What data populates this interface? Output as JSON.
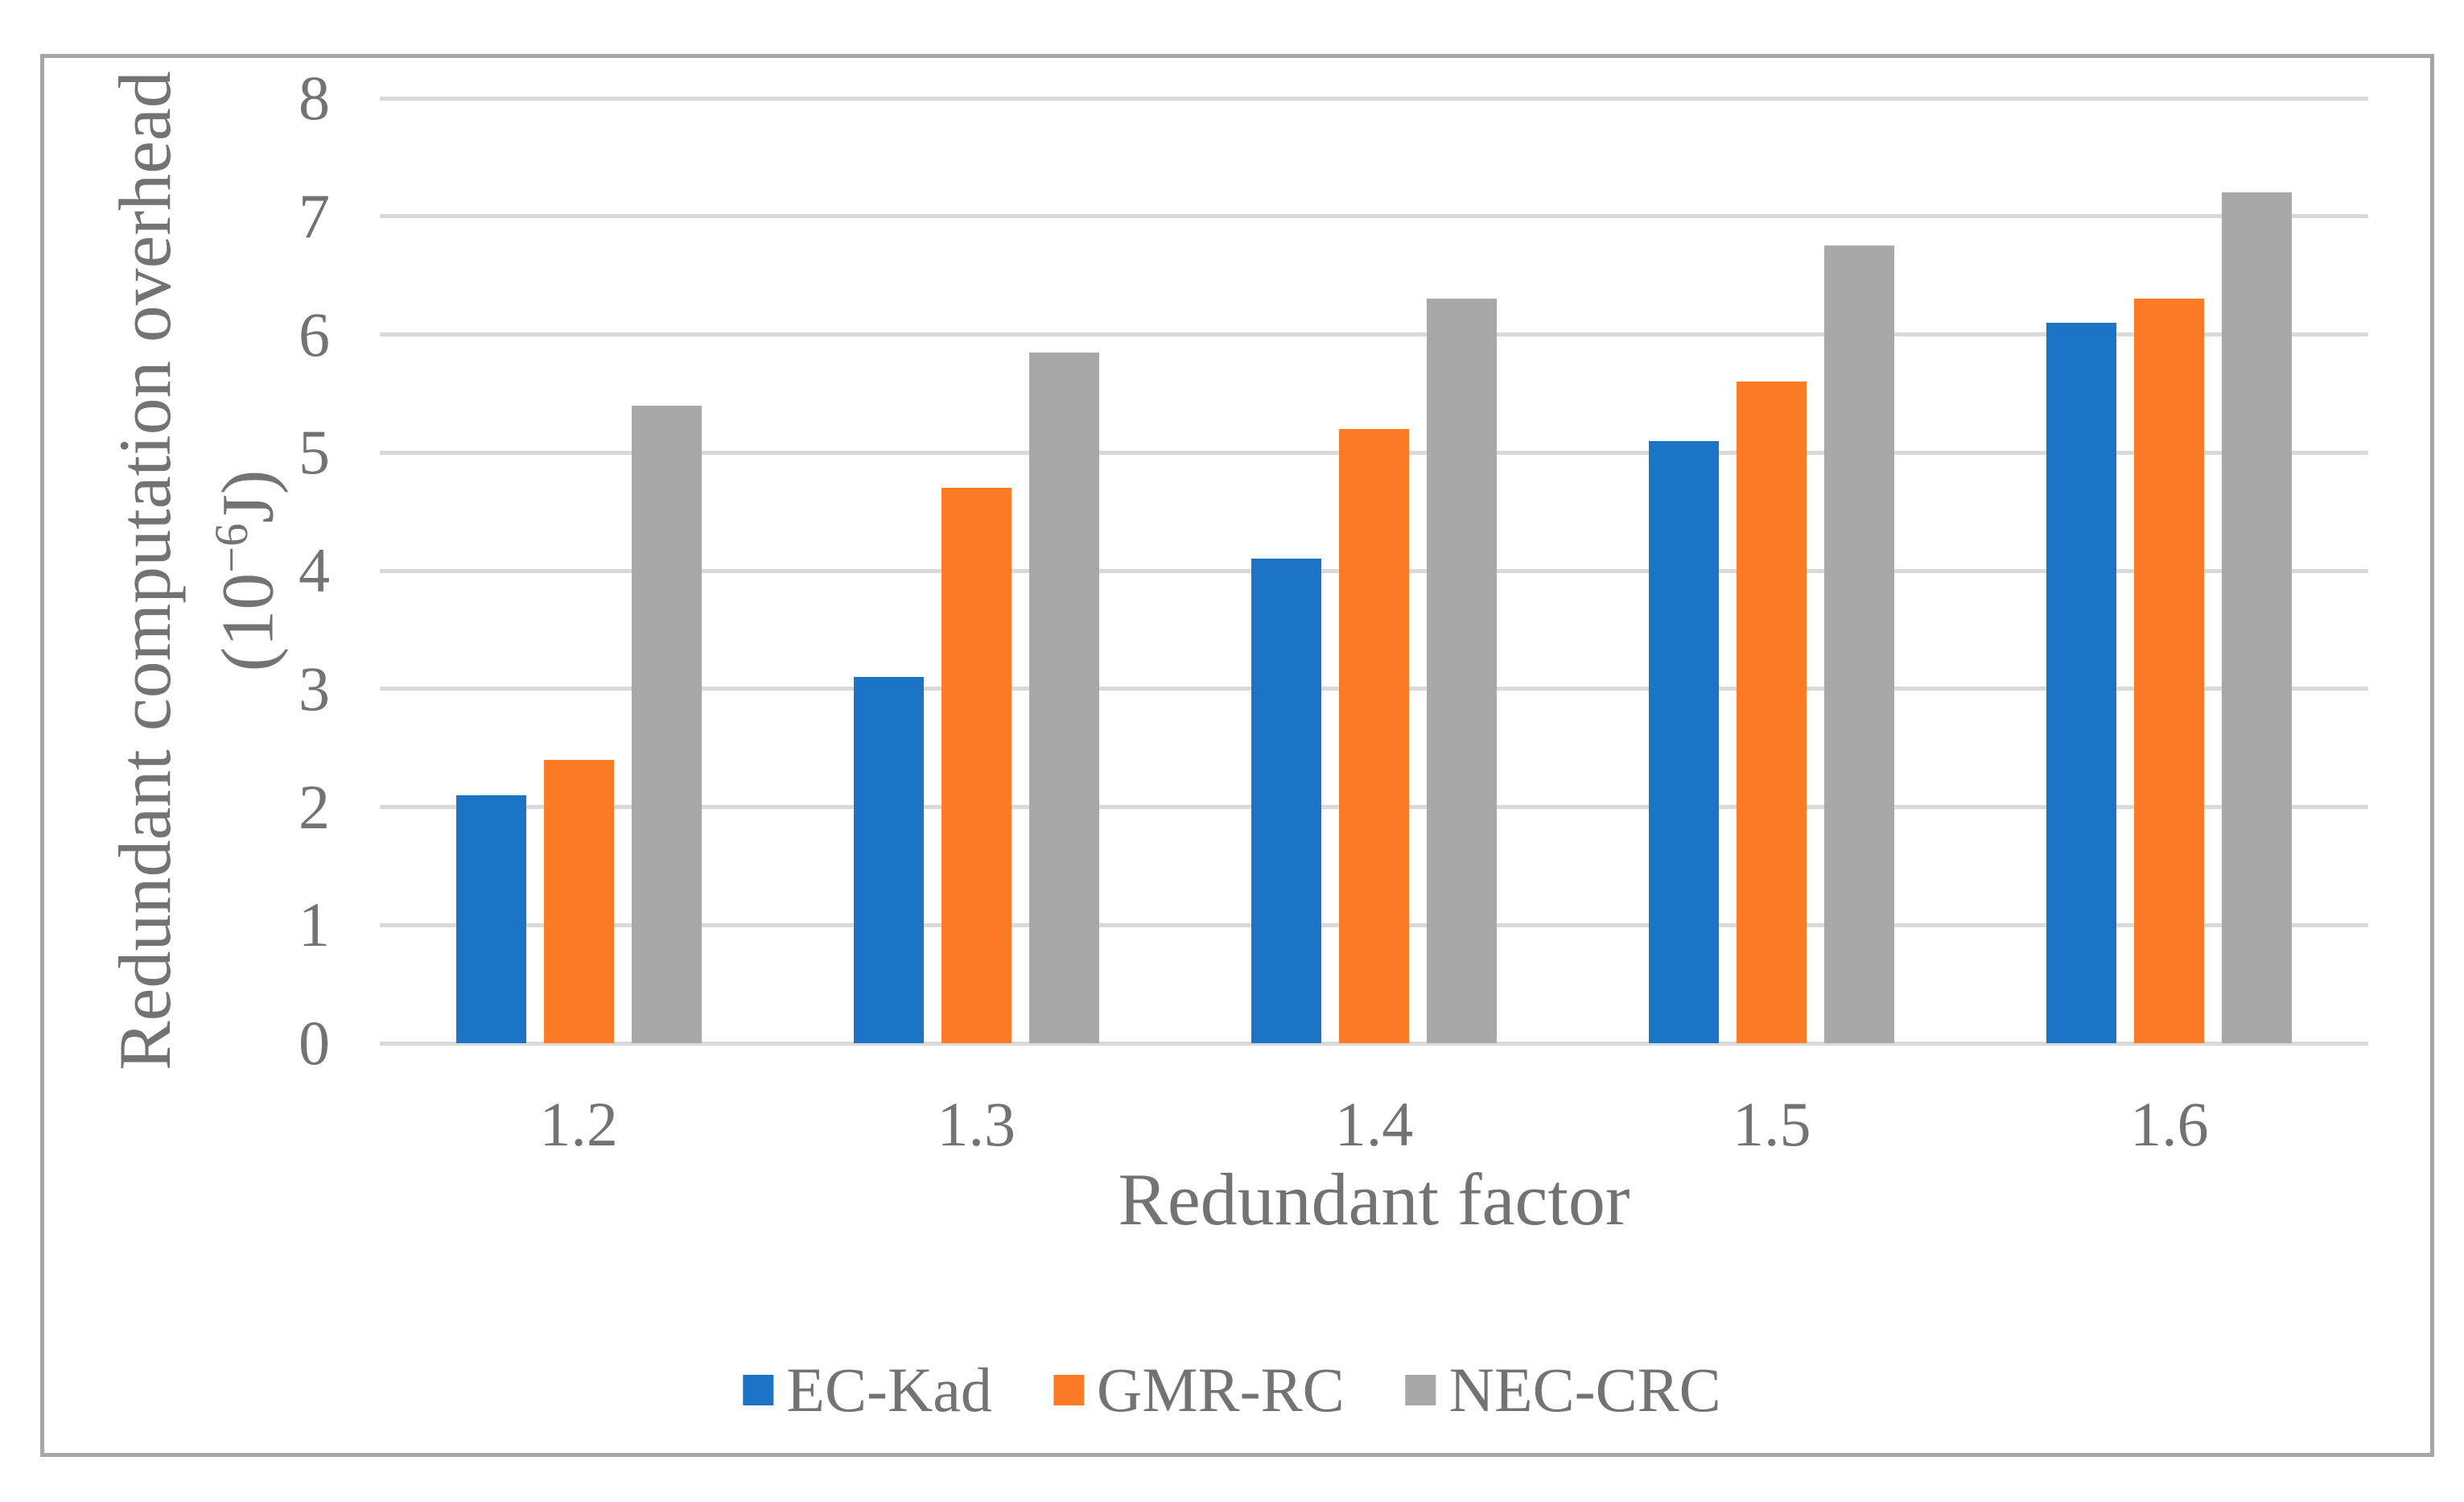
{
  "figure": {
    "border_color": "#A6A6A6",
    "background_color": "#FFFFFF"
  },
  "chart_data": {
    "type": "bar",
    "title": "",
    "categories": [
      "1.2",
      "1.3",
      "1.4",
      "1.5",
      "1.6"
    ],
    "series": [
      {
        "name": "EC-Kad",
        "color": "#1B74C5",
        "values": [
          2.1,
          3.1,
          4.1,
          5.1,
          6.1
        ]
      },
      {
        "name": "GMR-RC",
        "color": "#FD7B25",
        "values": [
          2.4,
          4.7,
          5.2,
          5.6,
          6.3
        ]
      },
      {
        "name": "NEC-CRC",
        "color": "#A9A8A8",
        "values": [
          5.4,
          5.85,
          6.3,
          6.75,
          7.2
        ]
      }
    ],
    "xlabel": "Redundant factor",
    "ylabel_line1": "Redundant computation overhead",
    "ylabel_line2_prefix": "(10",
    "ylabel_line2_superscript": "−6",
    "ylabel_line2_suffix": "J)",
    "y_ticks": [
      0,
      1,
      2,
      3,
      4,
      5,
      6,
      7,
      8
    ],
    "ylim": [
      0,
      8
    ],
    "grid": true,
    "gridline_color": "#D9D9D9",
    "text_color": "#737373",
    "legend_position": "bottom",
    "legend_entries": [
      "EC-Kad",
      "GMR-RC",
      "NEC-CRC"
    ]
  }
}
